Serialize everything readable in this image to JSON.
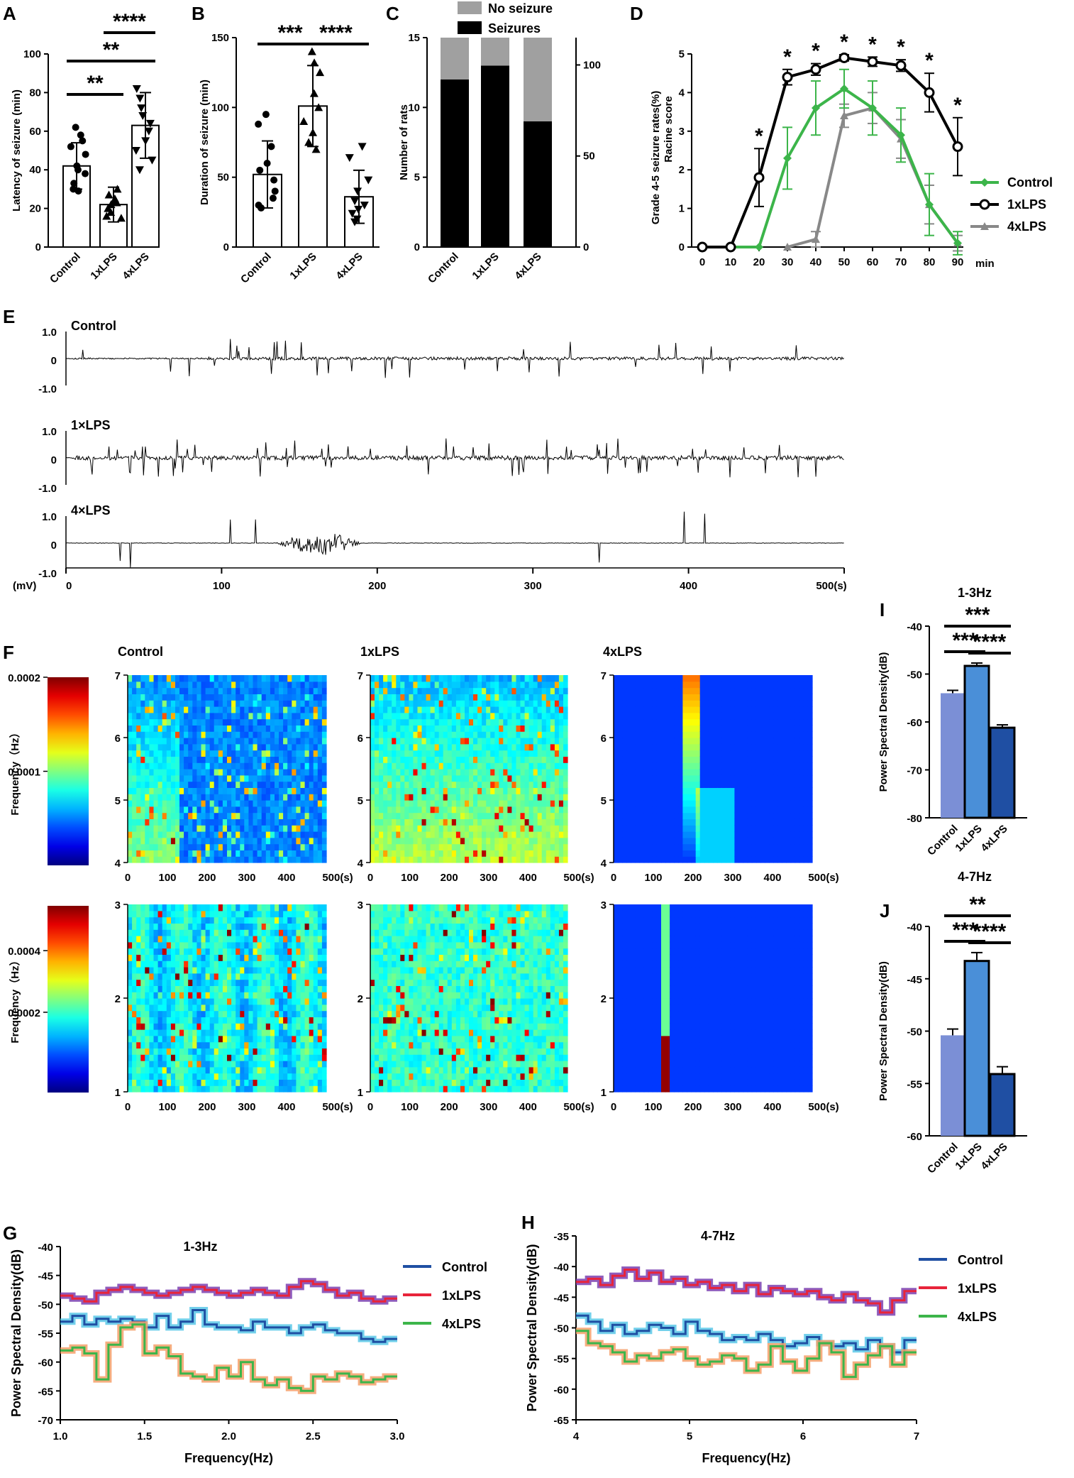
{
  "chart_data": [
    {
      "panel": "A",
      "type": "bar",
      "ylabel": "Latency of seizure (min)",
      "ylim": [
        0,
        100
      ],
      "yticks": [
        0,
        20,
        40,
        60,
        80,
        100
      ],
      "categories": [
        "Control",
        "1xLPS",
        "4xLPS"
      ],
      "values": [
        42,
        22,
        63
      ],
      "errors": [
        12,
        9,
        17
      ],
      "points": [
        [
          62,
          58,
          55,
          52,
          48,
          42,
          40,
          38,
          33,
          30,
          29
        ],
        [
          30,
          27,
          25,
          24,
          23,
          22,
          20,
          18,
          16,
          15
        ],
        [
          82,
          77,
          72,
          68,
          64,
          60,
          55,
          50,
          45,
          40
        ]
      ],
      "significance": [
        {
          "pair": [
            0,
            1
          ],
          "label": "**"
        },
        {
          "pair": [
            0,
            2
          ],
          "label": "**"
        },
        {
          "pair": [
            1,
            2
          ],
          "label": "****"
        }
      ]
    },
    {
      "panel": "B",
      "type": "bar",
      "ylabel": "Duration of seizure (min)",
      "ylim": [
        0,
        150
      ],
      "yticks": [
        0,
        50,
        100,
        150
      ],
      "categories": [
        "Control",
        "1xLPS",
        "4xLPS"
      ],
      "values": [
        52,
        101,
        36
      ],
      "errors": [
        24,
        29,
        19
      ],
      "points": [
        [
          95,
          88,
          72,
          60,
          55,
          48,
          40,
          35,
          30,
          28
        ],
        [
          140,
          132,
          125,
          110,
          100,
          90,
          82,
          75,
          70
        ],
        [
          72,
          64,
          48,
          40,
          33,
          30,
          27,
          24,
          20,
          18
        ]
      ],
      "significance": [
        {
          "pair": [
            0,
            1
          ],
          "label": "***"
        },
        {
          "pair": [
            1,
            2
          ],
          "label": "****"
        }
      ]
    },
    {
      "panel": "C",
      "type": "bar",
      "ylabel": "Number of rats",
      "ylim": [
        0,
        15
      ],
      "yticks": [
        0,
        5,
        10,
        15
      ],
      "y2ticks": [
        0,
        50,
        100
      ],
      "categories": [
        "Control",
        "1xLPS",
        "4xLPS"
      ],
      "series": [
        {
          "name": "Seizures",
          "values": [
            12,
            13,
            9
          ],
          "color": "#000000"
        },
        {
          "name": "No seizure",
          "values": [
            3,
            2,
            6
          ],
          "color": "#a0a0a0"
        }
      ]
    },
    {
      "panel": "D",
      "type": "line",
      "ylabel": "Grade 4-5 seizure rates(%)",
      "ylabel2": "Racine score",
      "xlabel": "min",
      "ylim": [
        0,
        5
      ],
      "yticks": [
        0,
        1,
        2,
        3,
        4,
        5
      ],
      "x": [
        0,
        10,
        20,
        30,
        40,
        50,
        60,
        70,
        80,
        90
      ],
      "series": [
        {
          "name": "Control",
          "color": "#3cb54a",
          "values": [
            0,
            0,
            0,
            2.3,
            3.6,
            4.1,
            3.6,
            2.9,
            1.1,
            0.1
          ],
          "errors": [
            0,
            0,
            0,
            0.8,
            0.7,
            0.5,
            0.7,
            0.7,
            0.8,
            0.3
          ]
        },
        {
          "name": "1xLPS",
          "color": "#000000",
          "values": [
            0,
            0,
            1.8,
            4.4,
            4.6,
            4.9,
            4.8,
            4.7,
            4.0,
            2.6
          ],
          "errors": [
            0,
            0,
            0.75,
            0.2,
            0.15,
            0.08,
            0.12,
            0.15,
            0.5,
            0.75
          ]
        },
        {
          "name": "4xLPS",
          "color": "#888888",
          "values": [
            null,
            null,
            null,
            0,
            0.2,
            3.4,
            3.6,
            2.8,
            1.1,
            0.1
          ],
          "errors": [
            0,
            0,
            0,
            0,
            0.2,
            0.3,
            0.4,
            0.5,
            0.5,
            0.2
          ]
        }
      ],
      "star_label": "*"
    },
    {
      "panel": "E",
      "type": "line",
      "xlabel": "(s)",
      "unit_label": "(mV)",
      "xlim": [
        0,
        500
      ],
      "xticks": [
        0,
        100,
        200,
        300,
        400,
        500
      ],
      "yticks": [
        "1.0",
        "0",
        "-1.0"
      ],
      "traces": [
        "Control",
        "1×LPS",
        "4×LPS"
      ]
    },
    {
      "panel": "F",
      "type": "heatmap",
      "ylabel": "Frequency（Hz）",
      "columns": [
        "Control",
        "1xLPS",
        "4xLPS"
      ],
      "rows": [
        {
          "band": "4-7Hz",
          "yticks": [
            4,
            5,
            6,
            7
          ],
          "colorbar_ticks": [
            "0.0002",
            "0.0001"
          ]
        },
        {
          "band": "1-3Hz",
          "yticks": [
            1,
            2,
            3
          ],
          "colorbar_ticks": [
            "0.0004",
            "0.0002"
          ]
        }
      ],
      "xticks": [
        "0",
        "100",
        "200",
        "300",
        "400",
        "500(s)"
      ]
    },
    {
      "panel": "G",
      "type": "line",
      "title": "1-3Hz",
      "xlabel": "Frequency(Hz)",
      "ylabel": "Power Spectral Density(dB)",
      "xlim": [
        1.0,
        3.0
      ],
      "ylim": [
        -70,
        -40
      ],
      "xticks": [
        "1.0",
        "1.5",
        "2.0",
        "2.5",
        "3.0"
      ],
      "yticks": [
        "-40",
        "-45",
        "-50",
        "-55",
        "-60",
        "-65",
        "-70"
      ],
      "series": [
        {
          "name": "Control",
          "color": "#1f4fa3",
          "band_color": "#5bc8e8",
          "values": [
            -53,
            -52,
            -53.5,
            -52.5,
            -53,
            -52.5,
            -53,
            -54,
            -52,
            -54,
            -53,
            -51,
            -53.5,
            -54,
            -54,
            -54.5,
            -53,
            -54,
            -54,
            -55,
            -54,
            -53.5,
            -54.5,
            -55,
            -55,
            -56,
            -56.5,
            -56
          ]
        },
        {
          "name": "1xLPS",
          "color": "#e8243a",
          "band_color": "#7b3fb0",
          "values": [
            -48.5,
            -49,
            -49.5,
            -48,
            -47.5,
            -47,
            -47.5,
            -48,
            -48.5,
            -48,
            -47.5,
            -47,
            -47.5,
            -48,
            -48.5,
            -48,
            -47.5,
            -48,
            -48.5,
            -47,
            -46,
            -46.5,
            -47.5,
            -48.5,
            -48,
            -49,
            -49.5,
            -49
          ]
        },
        {
          "name": "4xLPS",
          "color": "#3cb54a",
          "band_color": "#f5a06a",
          "values": [
            -58,
            -57.5,
            -58.5,
            -63,
            -57,
            -54,
            -53.5,
            -58.5,
            -57.5,
            -59,
            -62,
            -62.5,
            -63,
            -61,
            -62.5,
            -60,
            -63,
            -64,
            -63,
            -64.5,
            -65,
            -62.5,
            -63,
            -62,
            -62.5,
            -63.5,
            -63,
            -62.5
          ]
        }
      ]
    },
    {
      "panel": "H",
      "type": "line",
      "title": "4-7Hz",
      "xlabel": "Frequency(Hz)",
      "ylabel": "Power Spectral Density(dB)",
      "xlim": [
        4,
        7
      ],
      "ylim": [
        -65,
        -35
      ],
      "xticks": [
        "4",
        "5",
        "6",
        "7"
      ],
      "yticks": [
        "-35",
        "-40",
        "-45",
        "-50",
        "-55",
        "-60",
        "-65"
      ],
      "series": [
        {
          "name": "Control",
          "color": "#1f4fa3",
          "band_color": "#5bc8e8",
          "values": [
            -48,
            -49,
            -50.5,
            -49.5,
            -51,
            -50.5,
            -49.5,
            -50,
            -51,
            -49,
            -50.5,
            -51,
            -52,
            -51.5,
            -52,
            -51,
            -52,
            -53,
            -52.5,
            -51.5,
            -52.5,
            -53,
            -52.5,
            -53.5,
            -52,
            -53,
            -54,
            -52
          ]
        },
        {
          "name": "1xLPS",
          "color": "#e8243a",
          "band_color": "#7b3fb0",
          "values": [
            -42.5,
            -42,
            -43,
            -41.5,
            -40.5,
            -42,
            -41,
            -42.5,
            -42,
            -43,
            -42.5,
            -43.5,
            -43,
            -44,
            -43,
            -44.5,
            -43.5,
            -44,
            -44.5,
            -44,
            -45,
            -45.5,
            -44.5,
            -45.5,
            -46,
            -47.5,
            -45.5,
            -44
          ]
        },
        {
          "name": "4xLPS",
          "color": "#3cb54a",
          "band_color": "#f5a06a",
          "values": [
            -50.5,
            -52.5,
            -53,
            -54,
            -55.5,
            -54.5,
            -55,
            -54,
            -53.5,
            -55,
            -56,
            -55.5,
            -54.5,
            -55,
            -57,
            -56,
            -53,
            -55.5,
            -57,
            -55,
            -52.5,
            -54,
            -58,
            -56,
            -54.5,
            -53,
            -56,
            -54
          ]
        }
      ]
    },
    {
      "panel": "I",
      "type": "bar",
      "title": "1-3Hz",
      "ylabel": "Power Spectral Density(dB)",
      "ylim": [
        -80,
        -40
      ],
      "yticks": [
        "-40",
        "-50",
        "-60",
        "-70",
        "-80"
      ],
      "categories": [
        "Control",
        "1xLPS",
        "4xLPS"
      ],
      "values": [
        -54,
        -48.3,
        -61.2
      ],
      "errors": [
        0.6,
        0.6,
        0.6
      ],
      "colors": [
        "#7b8fd6",
        "#4a8fd8",
        "#1f4fa3"
      ],
      "significance": [
        {
          "pair": [
            0,
            2
          ],
          "label": "***"
        },
        {
          "pair": [
            0,
            1
          ],
          "label": "***"
        },
        {
          "pair": [
            1,
            2
          ],
          "label": "****"
        }
      ]
    },
    {
      "panel": "J",
      "type": "bar",
      "title": "4-7Hz",
      "ylabel": "Power Spectral Density(dB)",
      "ylim": [
        -60,
        -40
      ],
      "yticks": [
        "-40",
        "-45",
        "-50",
        "-55",
        "-60"
      ],
      "categories": [
        "Control",
        "1xLPS",
        "4xLPS"
      ],
      "values": [
        -50.4,
        -43.3,
        -54.1
      ],
      "errors": [
        0.6,
        0.8,
        0.7
      ],
      "colors": [
        "#7b8fd6",
        "#4a8fd8",
        "#1f4fa3"
      ],
      "significance": [
        {
          "pair": [
            0,
            2
          ],
          "label": "**"
        },
        {
          "pair": [
            0,
            1
          ],
          "label": "***"
        },
        {
          "pair": [
            1,
            2
          ],
          "label": "****"
        }
      ]
    }
  ]
}
